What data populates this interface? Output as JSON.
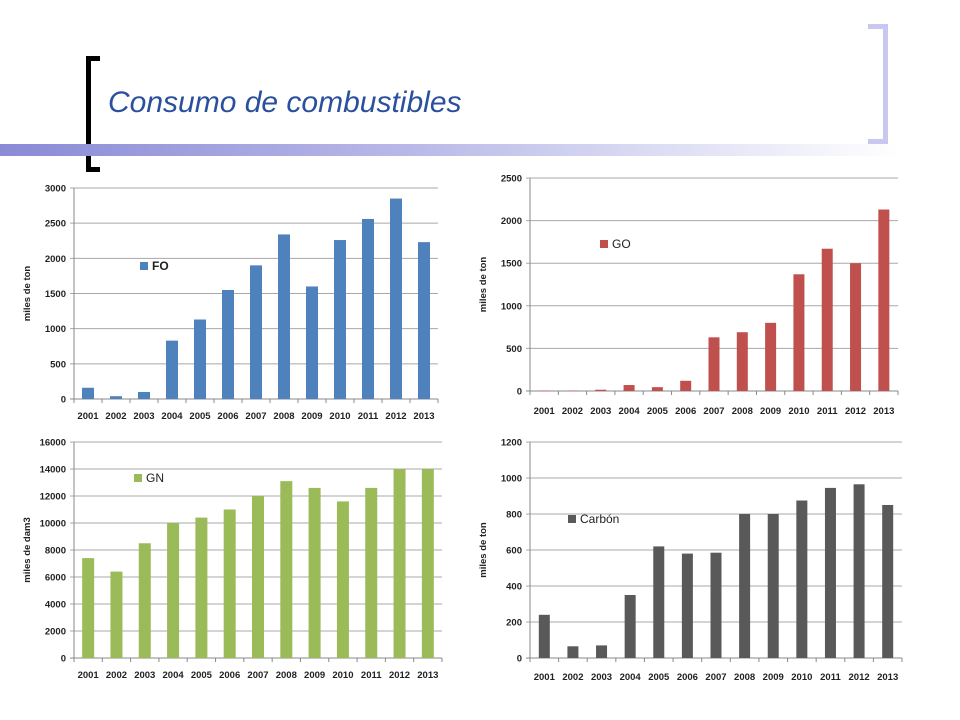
{
  "slide": {
    "title": "Consumo de combustibles"
  },
  "chart_data": [
    {
      "type": "bar",
      "categories": [
        "2001",
        "2002",
        "2003",
        "2004",
        "2005",
        "2006",
        "2007",
        "2008",
        "2009",
        "2010",
        "2011",
        "2012",
        "2013"
      ],
      "series": [
        {
          "name": "FO",
          "values": [
            160,
            40,
            100,
            830,
            1130,
            1550,
            1900,
            2340,
            1600,
            2260,
            2560,
            2850,
            2230
          ]
        }
      ],
      "ylabel": "miles de ton",
      "ylim": [
        0,
        3000
      ],
      "yticks": [
        0,
        500,
        1000,
        1500,
        2000,
        2500,
        3000
      ],
      "grid": true,
      "legend": "top-left",
      "color": "#4f81bd"
    },
    {
      "type": "bar",
      "categories": [
        "2001",
        "2002",
        "2003",
        "2004",
        "2005",
        "2006",
        "2007",
        "2008",
        "2009",
        "2010",
        "2011",
        "2012",
        "2013"
      ],
      "series": [
        {
          "name": "GO",
          "values": [
            5,
            5,
            15,
            70,
            45,
            120,
            630,
            690,
            800,
            1370,
            1670,
            1500,
            2130
          ]
        }
      ],
      "ylabel": "miles de ton",
      "ylim": [
        0,
        2500
      ],
      "yticks": [
        0,
        500,
        1000,
        1500,
        2000,
        2500
      ],
      "grid": true,
      "legend": "top-left",
      "color": "#c0504d"
    },
    {
      "type": "bar",
      "categories": [
        "2001",
        "2002",
        "2003",
        "2004",
        "2005",
        "2006",
        "2007",
        "2008",
        "2009",
        "2010",
        "2011",
        "2012",
        "2013"
      ],
      "series": [
        {
          "name": "GN",
          "values": [
            7400,
            6400,
            8500,
            10000,
            10400,
            11000,
            12000,
            13100,
            12600,
            11600,
            12600,
            14000,
            14000
          ]
        }
      ],
      "ylabel": "miles de dam3",
      "ylim": [
        0,
        16000
      ],
      "yticks": [
        0,
        2000,
        4000,
        6000,
        8000,
        10000,
        12000,
        14000,
        16000
      ],
      "grid": true,
      "legend": "top-left",
      "color": "#9bbb59"
    },
    {
      "type": "bar",
      "categories": [
        "2001",
        "2002",
        "2003",
        "2004",
        "2005",
        "2006",
        "2007",
        "2008",
        "2009",
        "2010",
        "2011",
        "2012",
        "2013"
      ],
      "series": [
        {
          "name": "Carbón",
          "values": [
            240,
            65,
            70,
            350,
            620,
            580,
            585,
            800,
            800,
            875,
            945,
            965,
            850
          ]
        }
      ],
      "ylabel": "miles de ton",
      "ylim": [
        0,
        1200
      ],
      "yticks": [
        0,
        200,
        400,
        600,
        800,
        1000,
        1200
      ],
      "grid": true,
      "legend": "top-left",
      "color": "#595959"
    }
  ]
}
